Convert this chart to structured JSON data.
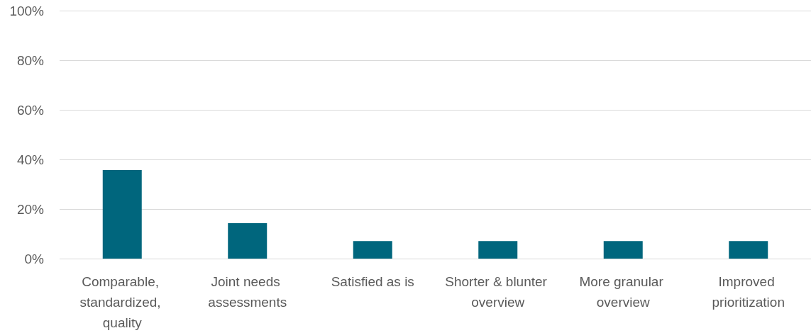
{
  "chart_data": {
    "type": "bar",
    "categories": [
      "Comparable, standardized, quality",
      "Joint needs assessments",
      "Satisfied as is",
      "Shorter & blunter overview",
      "More granular overview",
      "Improved prioritization"
    ],
    "values": [
      35.7,
      14.3,
      7.1,
      7.1,
      7.1,
      7.1
    ],
    "color": "#00667d",
    "ylim": [
      0,
      100
    ],
    "yticks": [
      {
        "value": 0,
        "label": "0%"
      },
      {
        "value": 20,
        "label": "20%"
      },
      {
        "value": 40,
        "label": "40%"
      },
      {
        "value": 60,
        "label": "60%"
      },
      {
        "value": 80,
        "label": "80%"
      },
      {
        "value": 100,
        "label": "100%"
      }
    ],
    "grid": "y"
  }
}
